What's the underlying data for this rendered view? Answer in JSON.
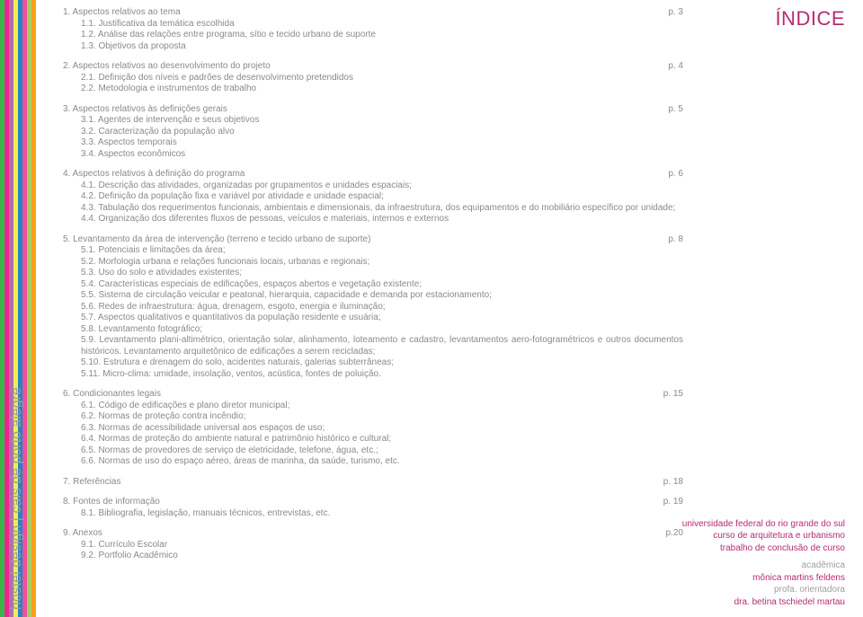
{
  "bars": [
    "#3bb64b",
    "#ec268f",
    "#af6fb0",
    "#f3ed4e",
    "#2484c6",
    "#ef4f9d",
    "#a4cf5f",
    "#f6a11a"
  ],
  "vertical": "hostel design | cais de porto alegre",
  "indice": "ÍNDICE",
  "sections": [
    {
      "title": "1.  Aspectos relativos ao tema",
      "page": "p. 3",
      "subs": [
        "1.1.       Justificativa da temática escolhida",
        "1.2.       Análise das relações entre programa, sítio e tecido urbano de suporte",
        "1.3.       Objetivos da proposta"
      ]
    },
    {
      "title": "2.  Aspectos relativos ao desenvolvimento do projeto",
      "page": "p. 4",
      "subs": [
        "2.1.       Definição dos níveis e padrões de desenvolvimento pretendidos",
        "2.2.       Metodologia e instrumentos de trabalho"
      ]
    },
    {
      "title": "3.  Aspectos relativos às definições gerais",
      "page": "p. 5",
      "subs": [
        "3.1. Agentes de intervenção e seus objetivos",
        "3.2. Caracterização da população alvo",
        "3.3. Aspectos temporais",
        "3.4. Aspectos econômicos"
      ]
    },
    {
      "title": "4.  Aspectos relativos à definição do programa",
      "page": "p. 6",
      "subs": [
        "4.1. Descrição das atividades, organizadas por grupamentos e unidades espaciais;",
        "4.2. Definição da população fixa e variável por atividade e unidade espacial;",
        "4.3. Tabulação dos requerimentos funcionais, ambientais e dimensionais, da infraestrutura, dos equipamentos e do mobiliário específico por unidade;",
        "4.4. Organização dos diferentes fluxos de pessoas, veículos e materiais, internos e externos"
      ]
    },
    {
      "title": "5. Levantamento da área de intervenção (terreno e tecido urbano de suporte)",
      "page": "p. 8",
      "subs": [
        "5.1. Potenciais e limitações da área;",
        "5.2. Morfologia urbana e relações funcionais locais, urbanas e regionais;",
        "5.3. Uso do solo e atividades existentes;",
        "5.4. Características especiais de edificações, espaços abertos e vegetação existente;",
        "5.5. Sistema de circulação veicular e peatonal, hierarquia, capacidade e demanda por estacionamento;",
        "5.6. Redes de infraestrutura: água, drenagem, esgoto, energia e iluminação;",
        "5.7. Aspectos qualitativos e quantitativos da população residente e usuária;",
        "5.8. Levantamento fotográfico;",
        "5.9. Levantamento plani-altimétrico, orientação solar, alinhamento, loteamento e cadastro, levantamentos aero-fotogramétricos e outros documentos históricos. Levantamento arquitetônico de edificações a serem recicladas;",
        "5.10. Estrutura e drenagem do solo, acidentes naturais, galerias subterrâneas;",
        "5.11. Micro-clima: umidade, insolação, ventos, acústica, fontes de poluição."
      ]
    },
    {
      "title": "6. Condicionantes legais",
      "page": "p. 15",
      "subs": [
        "6.1. Código de edificações e plano diretor municipal;",
        "6.2. Normas de proteção contra incêndio;",
        "6.3. Normas de acessibilidade universal aos espaços de uso;",
        "6.4. Normas de proteção do ambiente natural e patrimônio histórico e cultural;",
        "6.5. Normas de provedores de serviço de eletricidade, telefone, água, etc.;",
        "6.6. Normas de uso do espaço aéreo, áreas de marinha, da saúde, turismo, etc."
      ]
    },
    {
      "title": "7.  Referências",
      "page": "p. 18",
      "subs": []
    },
    {
      "title": "8. Fontes de informação",
      "page": "p. 19",
      "subs": [
        "8.1. Bibliografia, legislação, manuais técnicos, entrevistas, etc."
      ]
    },
    {
      "title": "9.  Anexos",
      "page": "p.20",
      "subs": [
        "9.1. Currículo Escolar",
        "9.2. Portfolio Acadêmico"
      ]
    }
  ],
  "footer": {
    "l1": "universidade federal do rio grande do sul",
    "l2": "curso de arquitetura e urbanismo",
    "l3": "trabalho de conclusão de curso",
    "l4a": "acadêmica",
    "l4b": "mônica martins feldens",
    "l5a": "profa.  orientadora",
    "l5b": "dra. betina tschiedel martau"
  }
}
